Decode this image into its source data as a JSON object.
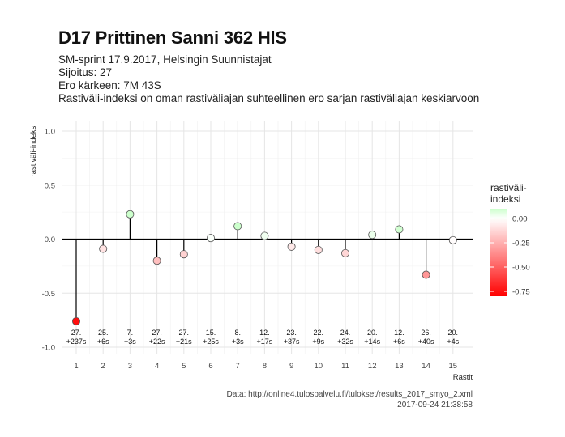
{
  "header": {
    "title": "D17 Prittinen Sanni 362 HlS",
    "subtitle_lines": [
      "SM-sprint 17.9.2017, Helsingin Suunnistajat",
      "Sijoitus: 27",
      "Ero kärkeen: 7M 43S",
      "Rastiväli-indeksi on oman rastiväliajan suhteellinen ero sarjan rastiväliajan keskiarvoon"
    ]
  },
  "caption": {
    "source": "Data: http://online4.tulospalvelu.fi/tulokset/results_2017_smyo_2.xml",
    "timestamp": "2017-09-24 21:38:58"
  },
  "colors": {
    "low": "#ff0000",
    "mid": "#ffffff",
    "high": "#ccffcc",
    "grid": "#e5e5e5",
    "axis": "#000000"
  },
  "chart_data": {
    "type": "lollipop",
    "xlabel": "Rastit",
    "ylabel": "rastiväli-indeksi",
    "ylim": [
      -1.0,
      1.0
    ],
    "yticks": [
      -1.0,
      -0.5,
      0.0,
      0.5,
      1.0
    ],
    "ytick_labels": [
      "-1.0",
      "-0.5",
      "0.0",
      "0.5",
      "1.0"
    ],
    "x": [
      1,
      2,
      3,
      4,
      5,
      6,
      7,
      8,
      9,
      10,
      11,
      12,
      13,
      14,
      15
    ],
    "values": [
      -0.76,
      -0.09,
      0.23,
      -0.2,
      -0.14,
      0.01,
      0.12,
      0.03,
      -0.07,
      -0.1,
      -0.13,
      0.04,
      0.09,
      -0.33,
      -0.01
    ],
    "point_labels": [
      [
        "27.",
        "+237s"
      ],
      [
        "25.",
        "+6s"
      ],
      [
        "7.",
        "+3s"
      ],
      [
        "27.",
        "+22s"
      ],
      [
        "27.",
        "+21s"
      ],
      [
        "15.",
        "+25s"
      ],
      [
        "8.",
        "+3s"
      ],
      [
        "12.",
        "+17s"
      ],
      [
        "23.",
        "+37s"
      ],
      [
        "22.",
        "+9s"
      ],
      [
        "24.",
        "+32s"
      ],
      [
        "20.",
        "+14s"
      ],
      [
        "12.",
        "+6s"
      ],
      [
        "26.",
        "+40s"
      ],
      [
        "20.",
        "+4s"
      ]
    ],
    "legend": {
      "title_lines": [
        "rastiväli-",
        "indeksi"
      ],
      "breaks": [
        0.0,
        -0.25,
        -0.5,
        -0.75
      ],
      "break_labels": [
        "0.00",
        "-0.25",
        "-0.50",
        "-0.75"
      ],
      "range": [
        -0.8,
        0.1
      ],
      "position": "right"
    }
  }
}
